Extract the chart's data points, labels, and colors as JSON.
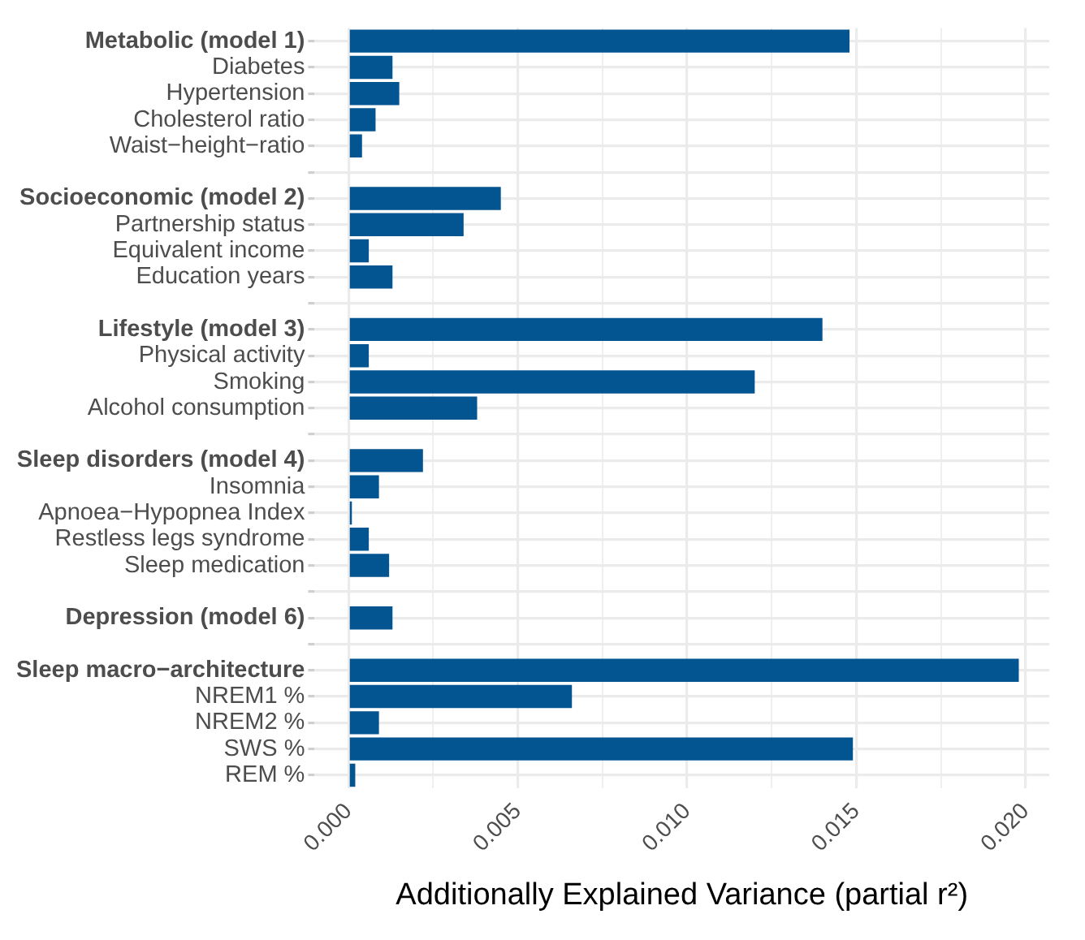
{
  "chart_data": {
    "type": "bar",
    "orientation": "horizontal",
    "xlabel": "Additionally Explained Variance (partial r²)",
    "categories": [
      "Metabolic (model 1)",
      "Diabetes",
      "Hypertension",
      "Cholesterol ratio",
      "Waist−height−ratio",
      null,
      "Socioeconomic (model 2)",
      "Partnership status",
      "Equivalent income",
      "Education years",
      null,
      "Lifestyle (model 3)",
      "Physical activity",
      "Smoking",
      "Alcohol consumption",
      null,
      "Sleep disorders (model 4)",
      "Insomnia",
      "Apnoea−Hypopnea Index",
      "Restless legs syndrome",
      "Sleep medication",
      null,
      "Depression (model 6)",
      null,
      "Sleep macro−architecture",
      "NREM1 %",
      "NREM2 %",
      "SWS %",
      "REM %"
    ],
    "values": [
      0.0148,
      0.0013,
      0.0015,
      0.0008,
      0.0004,
      null,
      0.0045,
      0.0034,
      0.0006,
      0.0013,
      null,
      0.014,
      0.0006,
      0.012,
      0.0038,
      null,
      0.0022,
      0.0009,
      0.0001,
      0.0006,
      0.0012,
      null,
      0.0013,
      null,
      0.0198,
      0.0066,
      0.0009,
      0.0149,
      0.0002
    ],
    "color": "#035592",
    "xlim": [
      -0.001,
      0.0207
    ],
    "xticks": [
      {
        "value": 0,
        "label": "0.000"
      },
      {
        "value": 0.0025,
        "label": null
      },
      {
        "value": 0.005,
        "label": "0.005"
      },
      {
        "value": 0.0075,
        "label": null
      },
      {
        "value": 0.01,
        "label": "0.010"
      },
      {
        "value": 0.0125,
        "label": null
      },
      {
        "value": 0.015,
        "label": "0.015"
      },
      {
        "value": 0.0175,
        "label": null
      },
      {
        "value": 0.02,
        "label": "0.020"
      }
    ],
    "grid": true,
    "legend": false
  }
}
